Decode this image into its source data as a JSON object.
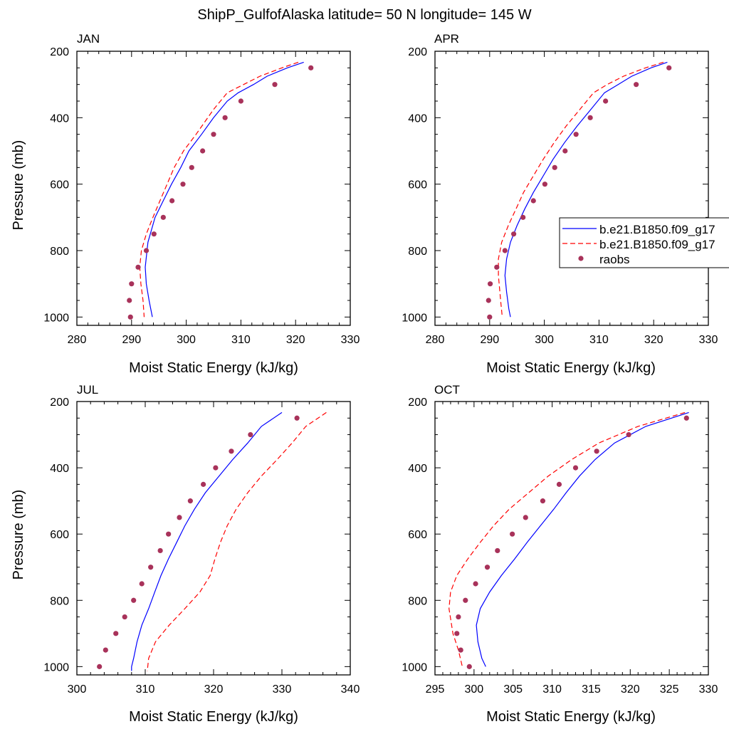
{
  "title": "ShipP_GulfofAlaska  latitude= 50 N longitude= 145 W",
  "colors": {
    "model1": "#0000ff",
    "model2": "#ff0000",
    "obs": "#a8325a",
    "axis": "#000000"
  },
  "legend": {
    "entries": [
      {
        "label": "b.e21.B1850.f09_g17",
        "style": "solid",
        "color": "#0000ff"
      },
      {
        "label": "b.e21.B1850.f09_g17",
        "style": "dashed",
        "color": "#ff0000"
      },
      {
        "label": "raobs",
        "style": "marker",
        "color": "#a8325a"
      }
    ]
  },
  "chart_data": [
    {
      "type": "line",
      "panel": "JAN",
      "xlabel": "Moist Static Energy (kJ/kg)",
      "ylabel": "Pressure (mb)",
      "xlim": [
        280,
        330
      ],
      "xticks": [
        280,
        290,
        300,
        310,
        320,
        330
      ],
      "ylim": [
        1025,
        200
      ],
      "yticks": [
        200,
        400,
        600,
        800,
        1000
      ],
      "series": [
        {
          "name": "b.e21.B1850.f09_g17",
          "style": "solid",
          "x": [
            321.5,
            318.5,
            314.8,
            312.3,
            309.5,
            307.5,
            305.0,
            302.8,
            300.5,
            299.0,
            297.3,
            295.8,
            294.3,
            293.0,
            292.5,
            292.7,
            293.2,
            293.8
          ],
          "y": [
            233,
            250,
            275,
            300,
            325,
            350,
            400,
            450,
            500,
            550,
            600,
            650,
            700,
            775,
            850,
            900,
            950,
            1000
          ]
        },
        {
          "name": "b.e21.B1850.f09_g17",
          "style": "dashed",
          "x": [
            320.5,
            317.5,
            313.5,
            310.5,
            307.5,
            305.0,
            301.8,
            299.5,
            297.8,
            296.5,
            295.2,
            293.9,
            292.7,
            291.8,
            291.5,
            291.7,
            292.1,
            292.3
          ],
          "y": [
            233,
            250,
            275,
            300,
            325,
            375,
            450,
            500,
            550,
            600,
            650,
            700,
            750,
            800,
            850,
            900,
            950,
            1000
          ]
        },
        {
          "name": "raobs",
          "style": "marker",
          "x": [
            322.8,
            316.2,
            310.0,
            307.1,
            305.0,
            303.0,
            301.0,
            299.4,
            297.4,
            295.8,
            294.1,
            292.7,
            291.2,
            290.0,
            289.6,
            289.8
          ],
          "y": [
            250,
            300,
            350,
            400,
            450,
            500,
            550,
            600,
            650,
            700,
            750,
            800,
            850,
            900,
            950,
            1000
          ]
        }
      ]
    },
    {
      "type": "line",
      "panel": "APR",
      "xlabel": "Moist Static Energy (kJ/kg)",
      "ylabel": "",
      "xlim": [
        280,
        330
      ],
      "xticks": [
        280,
        290,
        300,
        310,
        320,
        330
      ],
      "ylim": [
        1025,
        200
      ],
      "yticks": [
        200,
        400,
        600,
        800,
        1000
      ],
      "series": [
        {
          "name": "b.e21.B1850.f09_g17",
          "style": "solid",
          "x": [
            322.5,
            319.5,
            316.0,
            313.5,
            311.0,
            308.5,
            306.0,
            303.7,
            301.6,
            299.8,
            298.0,
            296.4,
            295.0,
            293.8,
            293.1,
            292.8,
            293.1,
            293.5,
            293.8
          ],
          "y": [
            233,
            250,
            275,
            300,
            325,
            375,
            425,
            475,
            525,
            575,
            625,
            675,
            725,
            775,
            825,
            875,
            925,
            975,
            1000
          ]
        },
        {
          "name": "b.e21.B1850.f09_g17",
          "style": "dashed",
          "x": [
            321.8,
            318.5,
            314.5,
            311.5,
            309.0,
            306.5,
            304.0,
            301.8,
            299.8,
            298.0,
            296.2,
            294.8,
            293.4,
            292.2,
            291.6,
            291.6,
            292.0,
            292.3
          ],
          "y": [
            233,
            250,
            275,
            300,
            325,
            375,
            425,
            475,
            525,
            575,
            625,
            675,
            725,
            775,
            825,
            875,
            950,
            1000
          ]
        },
        {
          "name": "raobs",
          "style": "marker",
          "x": [
            322.8,
            316.8,
            311.2,
            308.4,
            305.8,
            303.8,
            301.9,
            300.1,
            298.0,
            296.1,
            294.4,
            292.8,
            291.3,
            290.1,
            289.8,
            290.0
          ],
          "y": [
            250,
            300,
            350,
            400,
            450,
            500,
            550,
            600,
            650,
            700,
            750,
            800,
            850,
            900,
            950,
            1000
          ]
        }
      ]
    },
    {
      "type": "line",
      "panel": "JUL",
      "xlabel": "Moist Static Energy (kJ/kg)",
      "ylabel": "Pressure (mb)",
      "xlim": [
        300,
        340
      ],
      "xticks": [
        300,
        310,
        320,
        330,
        340
      ],
      "ylim": [
        1025,
        200
      ],
      "yticks": [
        200,
        400,
        600,
        800,
        1000
      ],
      "series": [
        {
          "name": "b.e21.B1850.f09_g17",
          "style": "solid",
          "x": [
            330.0,
            327.0,
            325.0,
            322.8,
            320.8,
            318.8,
            317.2,
            315.8,
            314.6,
            313.4,
            312.3,
            311.4,
            310.5,
            309.5,
            308.8,
            308.3,
            308.0,
            308.0
          ],
          "y": [
            233,
            275,
            325,
            375,
            425,
            475,
            525,
            575,
            625,
            675,
            725,
            775,
            825,
            875,
            925,
            975,
            1000,
            1013
          ]
        },
        {
          "name": "b.e21.B1850.f09_g17",
          "style": "dashed",
          "x": [
            336.5,
            333.5,
            331.5,
            329.3,
            327.0,
            325.0,
            323.3,
            322.0,
            321.0,
            320.2,
            319.5,
            318.0,
            315.8,
            313.5,
            311.5,
            310.5,
            310.3
          ],
          "y": [
            233,
            275,
            325,
            375,
            425,
            475,
            525,
            575,
            625,
            675,
            725,
            775,
            825,
            875,
            925,
            975,
            1013
          ]
        },
        {
          "name": "raobs",
          "style": "marker",
          "x": [
            332.2,
            325.4,
            322.6,
            320.3,
            318.5,
            316.6,
            315.0,
            313.4,
            312.2,
            310.8,
            309.5,
            308.3,
            307.0,
            305.7,
            304.2,
            303.3
          ],
          "y": [
            250,
            300,
            350,
            400,
            450,
            500,
            550,
            600,
            650,
            700,
            750,
            800,
            850,
            900,
            950,
            1000
          ]
        }
      ]
    },
    {
      "type": "line",
      "panel": "OCT",
      "xlabel": "Moist Static Energy (kJ/kg)",
      "ylabel": "",
      "xlim": [
        295,
        330
      ],
      "xticks": [
        295,
        300,
        305,
        310,
        315,
        320,
        325,
        330
      ],
      "ylim": [
        1025,
        200
      ],
      "yticks": [
        200,
        400,
        600,
        800,
        1000
      ],
      "series": [
        {
          "name": "b.e21.B1850.f09_g17",
          "style": "solid",
          "x": [
            327.5,
            322.0,
            318.0,
            315.5,
            313.5,
            311.8,
            310.2,
            308.5,
            306.8,
            305.2,
            303.5,
            302.0,
            300.8,
            300.3,
            300.5,
            301.0,
            301.5
          ],
          "y": [
            233,
            275,
            325,
            375,
            425,
            475,
            525,
            575,
            625,
            675,
            725,
            775,
            825,
            875,
            925,
            975,
            1000
          ]
        },
        {
          "name": "b.e21.B1850.f09_g17",
          "style": "dashed",
          "x": [
            327.0,
            321.0,
            316.0,
            312.5,
            309.5,
            307.0,
            304.5,
            302.5,
            300.8,
            299.2,
            297.8,
            297.0,
            296.8,
            297.3,
            298.0,
            298.5
          ],
          "y": [
            233,
            275,
            325,
            375,
            425,
            475,
            525,
            575,
            625,
            675,
            725,
            775,
            825,
            900,
            950,
            1000
          ]
        },
        {
          "name": "raobs",
          "style": "marker",
          "x": [
            327.2,
            319.8,
            315.7,
            313.0,
            310.9,
            308.8,
            306.6,
            304.9,
            303.0,
            301.7,
            300.2,
            298.9,
            298.0,
            297.8,
            298.3,
            299.4
          ],
          "y": [
            250,
            300,
            350,
            400,
            450,
            500,
            550,
            600,
            650,
            700,
            750,
            800,
            850,
            900,
            950,
            1000
          ]
        }
      ]
    }
  ]
}
